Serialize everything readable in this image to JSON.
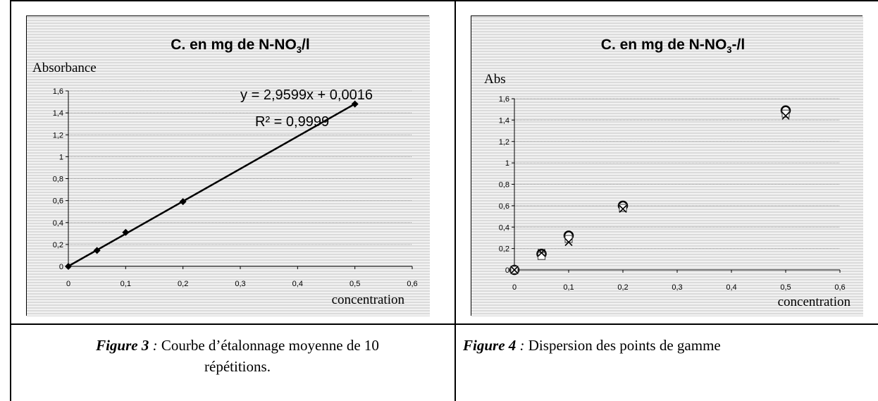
{
  "figures": [
    {
      "caption_label": "Figure 3",
      "caption_sep": " : ",
      "caption_text_1": "Courbe d’étalonnage moyenne de 10",
      "caption_text_2": "répétitions."
    },
    {
      "caption_label": "Figure 4",
      "caption_sep": " : ",
      "caption_text_1": "Dispersion des points de gamme"
    }
  ],
  "chart_data": [
    {
      "type": "scatter",
      "title_pre": "C. en mg de N-NO",
      "title_sub": "3",
      "title_post": "/l",
      "ylabel": "Absorbance",
      "xlabel": "concentration",
      "x_ticks": [
        "0",
        "0,1",
        "0,2",
        "0,3",
        "0,4",
        "0,5",
        "0,6"
      ],
      "y_ticks": [
        "0",
        "0,2",
        "0,4",
        "0,6",
        "0,8",
        "1",
        "1,2",
        "1,4",
        "1,6"
      ],
      "xlim": [
        0,
        0.6
      ],
      "ylim": [
        0,
        1.6
      ],
      "grid": "horizontal",
      "series": [
        {
          "x": [
            0,
            0.05,
            0.1,
            0.2,
            0.5
          ],
          "y": [
            0.0,
            0.145,
            0.31,
            0.59,
            1.48
          ]
        }
      ],
      "trendline": {
        "slope": 2.9599,
        "intercept": 0.0016,
        "x_range": [
          0,
          0.5
        ]
      },
      "equation": "y = 2,9599x + 0,0016",
      "r_squared": "R² = 0,9999"
    },
    {
      "type": "scatter",
      "title_pre": "C. en mg de N-NO",
      "title_sub": "3",
      "title_post": "-/l",
      "ylabel": "Abs",
      "xlabel": "concentration",
      "x_ticks": [
        "0",
        "0,1",
        "0,2",
        "0,3",
        "0,4",
        "0,5",
        "0,6"
      ],
      "y_ticks": [
        "0",
        "0,2",
        "0,4",
        "0,6",
        "0,8",
        "1",
        "1,2",
        "1,4",
        "1,6"
      ],
      "xlim": [
        0,
        0.6
      ],
      "ylim": [
        0,
        1.6
      ],
      "grid": "horizontal",
      "series": [
        {
          "x": [
            0,
            0.05,
            0.1,
            0.2,
            0.5
          ],
          "y": [
            0.0,
            0.15,
            0.32,
            0.6,
            1.49
          ]
        },
        {
          "x": [
            0,
            0.05,
            0.1,
            0.2,
            0.5
          ],
          "y": [
            0.0,
            0.13,
            0.29,
            0.58,
            1.46
          ]
        },
        {
          "x": [
            0,
            0.05,
            0.1,
            0.2,
            0.5
          ],
          "y": [
            0.0,
            0.16,
            0.26,
            0.57,
            1.44
          ]
        }
      ]
    }
  ]
}
